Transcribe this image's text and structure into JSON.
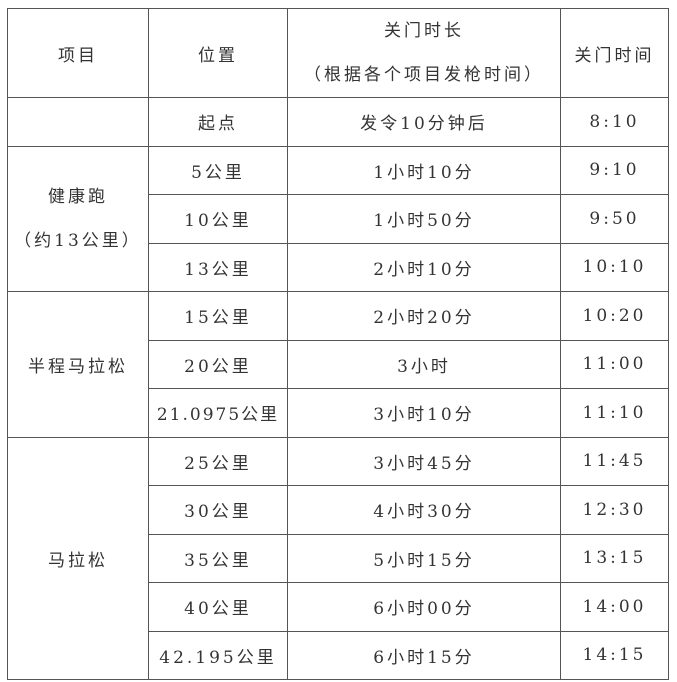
{
  "header": {
    "item": "项目",
    "position": "位置",
    "duration_line1": "关门时长",
    "duration_line2": "（根据各个项目发枪时间）",
    "close_time": "关门时间"
  },
  "start": {
    "position": "起点",
    "duration": "发令10分钟后",
    "time": "8:10"
  },
  "groups": [
    {
      "name_line1": "健康跑",
      "name_line2": "（约13公里）",
      "rows": [
        {
          "position": "5公里",
          "duration": "1小时10分",
          "time": "9:10"
        },
        {
          "position": "10公里",
          "duration": "1小时50分",
          "time": "9:50"
        },
        {
          "position": "13公里",
          "duration": "2小时10分",
          "time": "10:10"
        }
      ]
    },
    {
      "name_line1": "半程马拉松",
      "rows": [
        {
          "position": "15公里",
          "duration": "2小时20分",
          "time": "10:20"
        },
        {
          "position": "20公里",
          "duration": "3小时",
          "time": "11:00"
        },
        {
          "position": "21.0975公里",
          "duration": "3小时10分",
          "time": "11:10"
        }
      ]
    },
    {
      "name_line1": "马拉松",
      "rows": [
        {
          "position": "25公里",
          "duration": "3小时45分",
          "time": "11:45"
        },
        {
          "position": "30公里",
          "duration": "4小时30分",
          "time": "12:30"
        },
        {
          "position": "35公里",
          "duration": "5小时15分",
          "time": "13:15"
        },
        {
          "position": "40公里",
          "duration": "6小时00分",
          "time": "14:00"
        },
        {
          "position": "42.195公里",
          "duration": "6小时15分",
          "time": "14:15"
        }
      ]
    }
  ]
}
